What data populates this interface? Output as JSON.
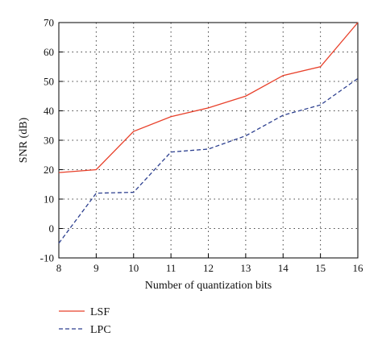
{
  "chart_data": {
    "type": "line",
    "title": "",
    "xlabel": "Number of quantization bits",
    "ylabel": "SNR (dB)",
    "x": [
      8,
      9,
      10,
      11,
      12,
      13,
      14,
      15,
      16
    ],
    "xlim": [
      8,
      16
    ],
    "ylim": [
      -10,
      70
    ],
    "yticks": [
      -10,
      0,
      10,
      20,
      30,
      40,
      50,
      60,
      70
    ],
    "grid": true,
    "legend_position": "bottom-left",
    "series": [
      {
        "name": "LSF",
        "style": "solid",
        "color": "#e8402a",
        "values": [
          19,
          20,
          33,
          38,
          41,
          45,
          52,
          55,
          70
        ]
      },
      {
        "name": "LPC",
        "style": "dashed",
        "color": "#2c3f8f",
        "values": [
          -5,
          12,
          12.3,
          26,
          27,
          31.5,
          38.5,
          42,
          51
        ]
      }
    ]
  }
}
